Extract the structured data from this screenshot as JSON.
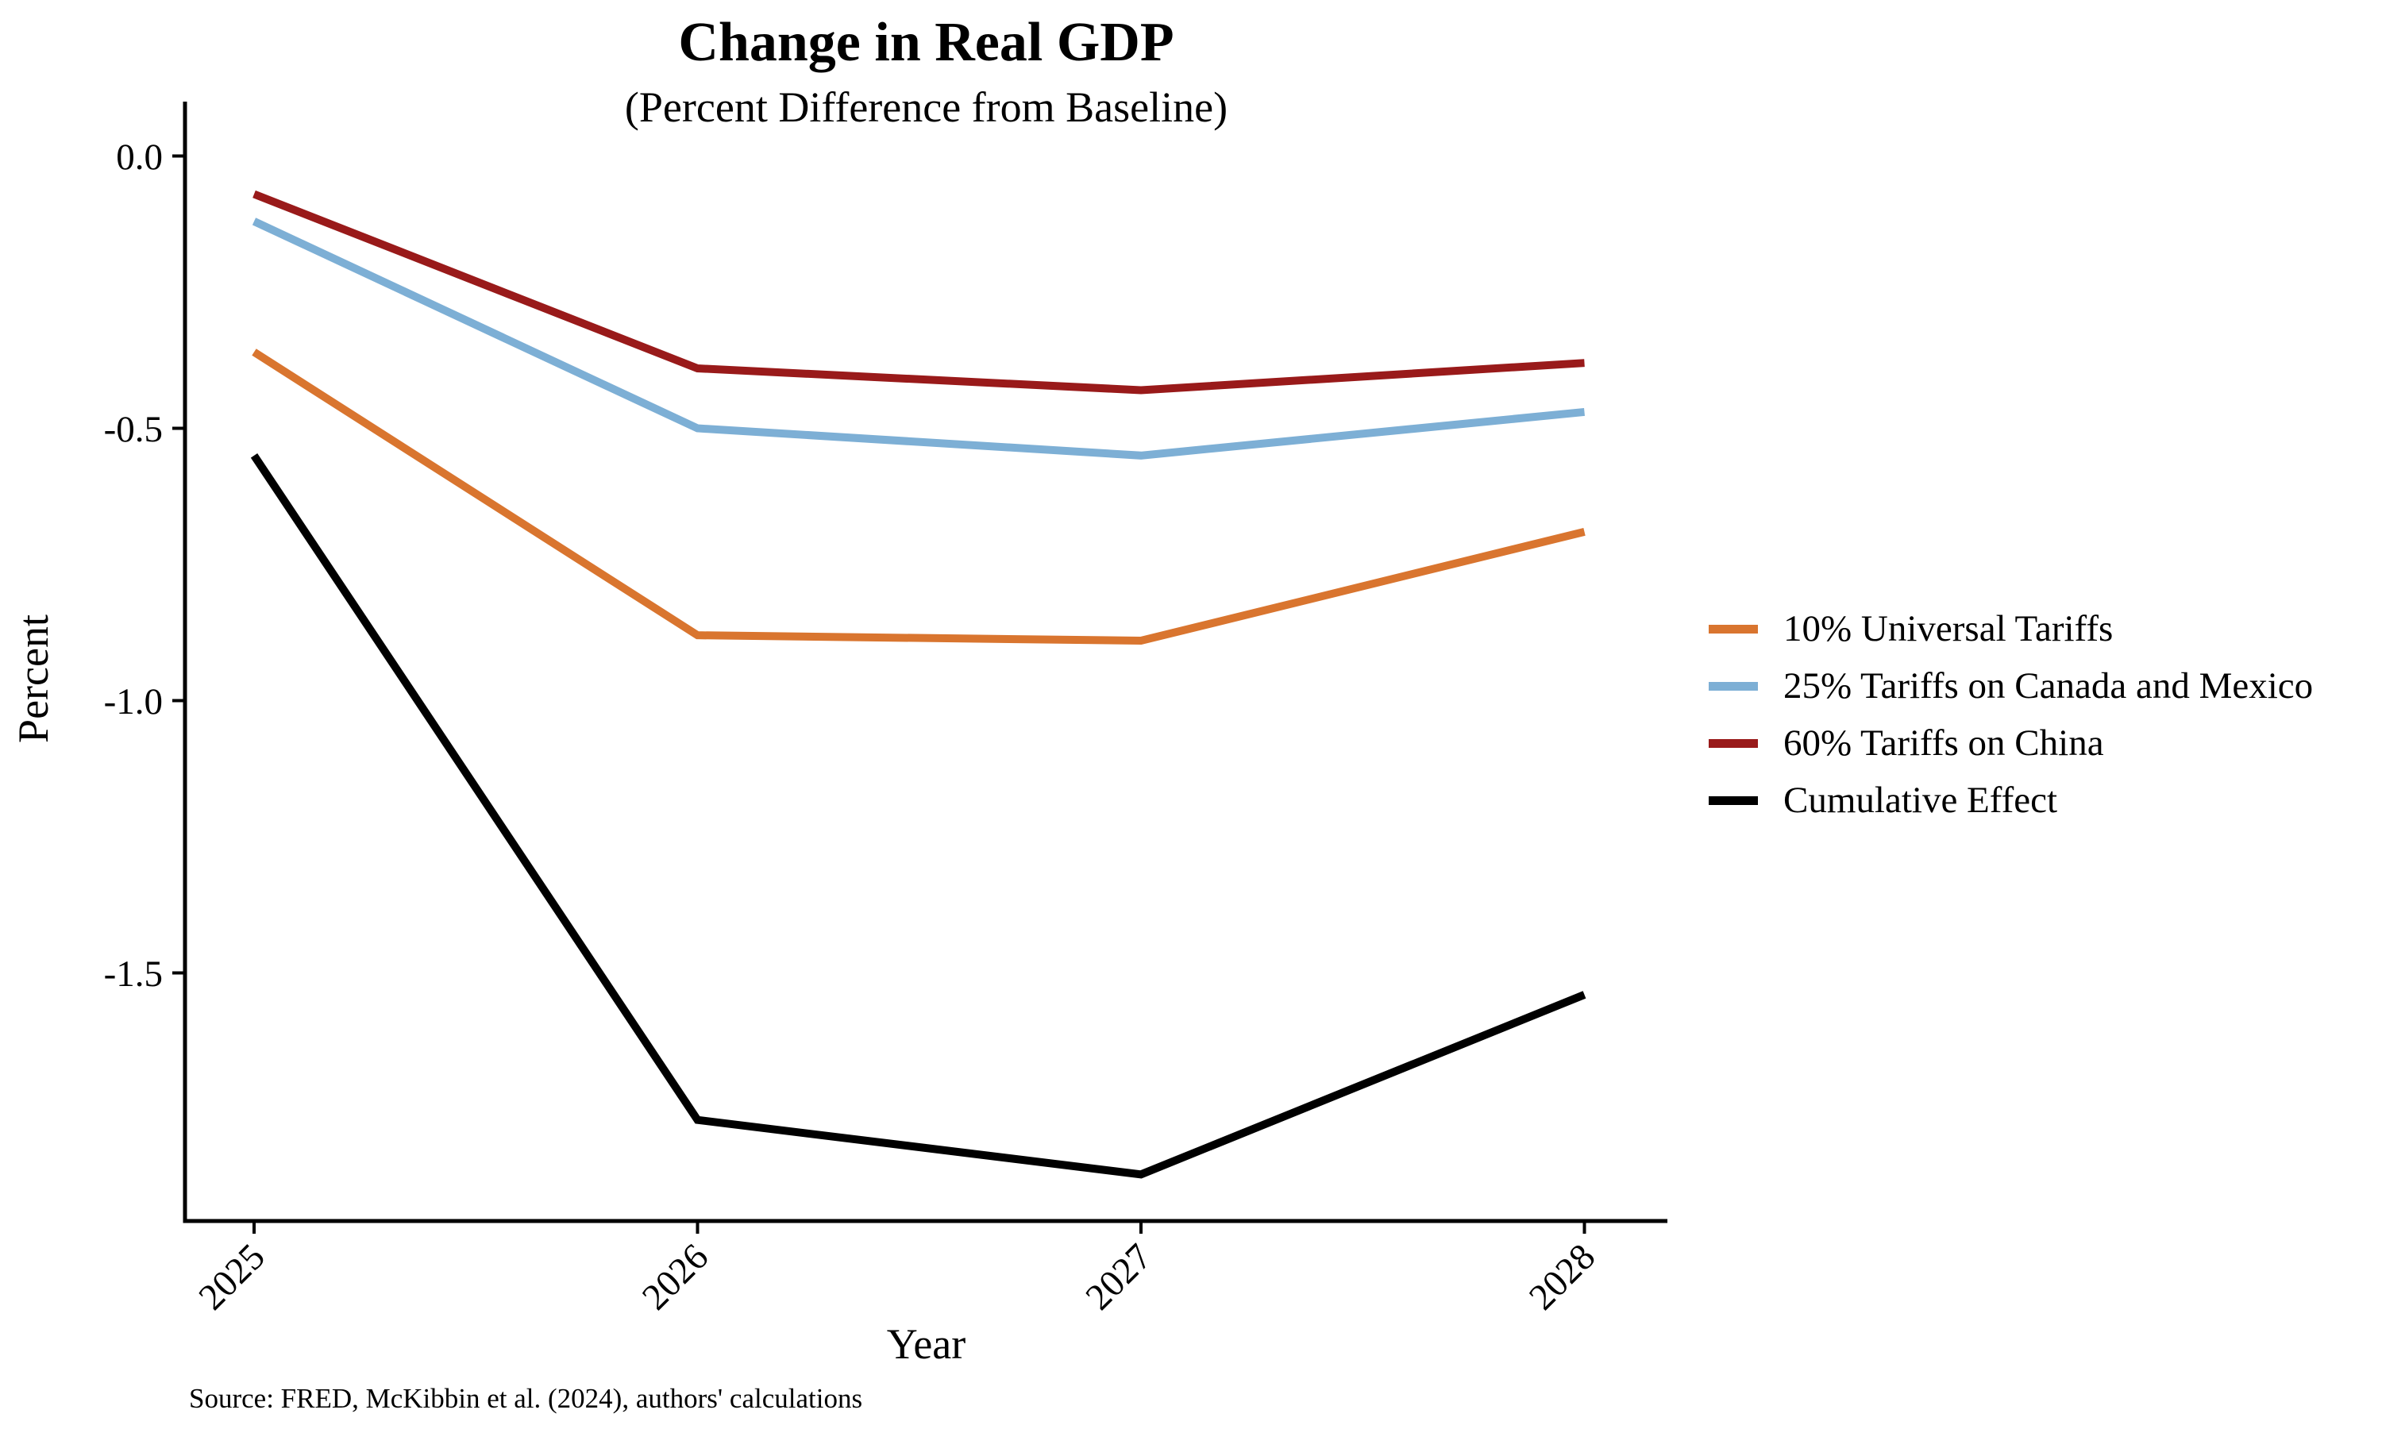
{
  "chart_data": {
    "type": "line",
    "title": "Change in Real GDP",
    "subtitle": "(Percent Difference from Baseline)",
    "xlabel": "Year",
    "ylabel": "Percent",
    "categories": [
      "2025",
      "2026",
      "2027",
      "2028"
    ],
    "y_ticks": [
      0.0,
      -0.5,
      -1.0,
      -1.5
    ],
    "y_tick_labels": [
      "0.0",
      "-0.5",
      "-1.0",
      "-1.5"
    ],
    "ylim": [
      -1.96,
      0.1
    ],
    "grid": false,
    "legend_position": "right",
    "series": [
      {
        "name": "10% Universal Tariffs",
        "color": "#D9752F",
        "values": [
          -0.36,
          -0.88,
          -0.89,
          -0.69
        ]
      },
      {
        "name": "25% Tariffs on Canada and Mexico",
        "color": "#7DAFD5",
        "values": [
          -0.12,
          -0.5,
          -0.55,
          -0.47
        ]
      },
      {
        "name": "60% Tariffs on China",
        "color": "#991A1A",
        "values": [
          -0.07,
          -0.39,
          -0.43,
          -0.38
        ]
      },
      {
        "name": "Cumulative Effect",
        "color": "#000000",
        "values": [
          -0.55,
          -1.77,
          -1.87,
          -1.54
        ]
      }
    ],
    "source_note": "Source: FRED, McKibbin et al. (2024), authors' calculations",
    "axis_color": "#000000"
  }
}
